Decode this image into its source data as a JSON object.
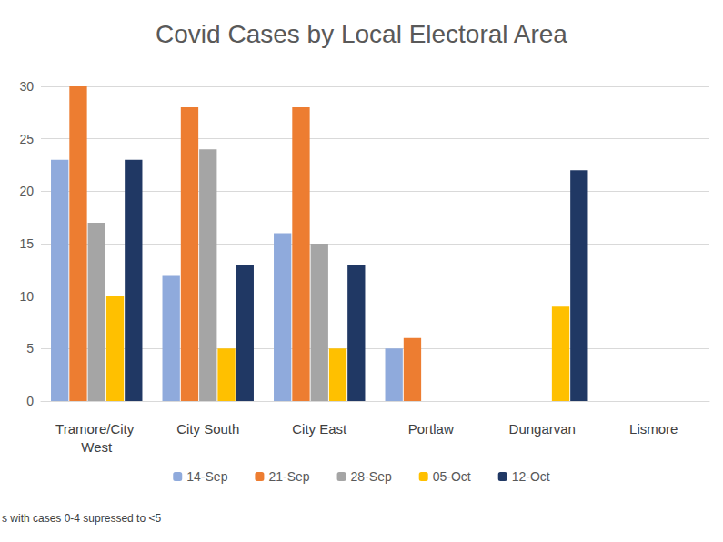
{
  "chart_data": {
    "type": "bar",
    "title": "Covid Cases by Local Electoral Area",
    "categories": [
      "Tramore/City West",
      "City South",
      "City East",
      "Portlaw",
      "Dungarvan",
      "Lismore"
    ],
    "series": [
      {
        "name": "14-Sep",
        "color": "#8faadc",
        "values": [
          23,
          12,
          16,
          5,
          0,
          0
        ]
      },
      {
        "name": "21-Sep",
        "color": "#ed7d31",
        "values": [
          30,
          28,
          28,
          6,
          0,
          0
        ]
      },
      {
        "name": "28-Sep",
        "color": "#a5a5a5",
        "values": [
          17,
          24,
          15,
          0,
          0,
          0
        ]
      },
      {
        "name": "05-Oct",
        "color": "#ffc000",
        "values": [
          10,
          5,
          5,
          0,
          9,
          0
        ]
      },
      {
        "name": "12-Oct",
        "color": "#203864",
        "values": [
          23,
          13,
          13,
          0,
          22,
          0
        ]
      }
    ],
    "ylim": [
      0,
      30
    ],
    "yticks": [
      0,
      5,
      10,
      15,
      20,
      25,
      30
    ],
    "grid": true,
    "legend": "bottom",
    "annotations": [
      "s with cases 0-4 supressed to <5"
    ]
  }
}
